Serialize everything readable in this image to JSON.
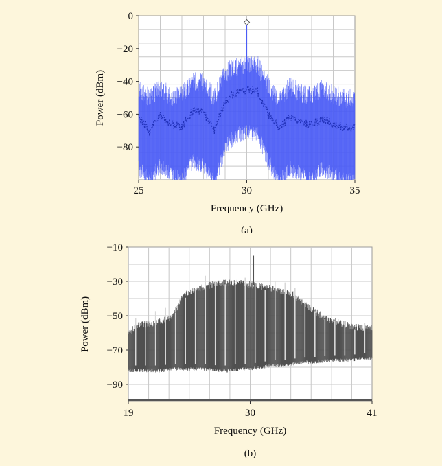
{
  "colors": {
    "background": "#fdf6dc",
    "plot_bg": "#ffffff",
    "grid": "#c8c8c8",
    "series_a": "#4a5cf5",
    "series_a_mean": "#2030b8",
    "series_b": "#505050",
    "series_b_bars": "#d8d8d8"
  },
  "chart_data": [
    {
      "type": "line",
      "caption": "(a)",
      "xlabel": "Frequency (GHz)",
      "ylabel": "Power (dBm)",
      "xlim": [
        25,
        35
      ],
      "ylim": [
        -100,
        0
      ],
      "x_ticks": [
        "25",
        "30",
        "35"
      ],
      "y_ticks": [
        "0",
        "−20",
        "−40",
        "−60",
        "−80"
      ],
      "grid": true,
      "legend": "none",
      "series": [
        {
          "x": [
            25.0,
            25.5,
            26.0,
            26.5,
            27.0,
            27.5,
            28.0,
            28.5,
            29.0,
            29.5,
            30.0,
            30.5,
            31.0,
            31.5,
            32.0,
            32.5,
            33.0,
            33.5,
            34.0,
            34.5,
            35.0
          ],
          "y_upper": [
            -44,
            -50,
            -44,
            -49,
            -48,
            -40,
            -41,
            -50,
            -35,
            -31,
            -29,
            -30,
            -43,
            -50,
            -43,
            -47,
            -49,
            -45,
            -48,
            -50,
            -50
          ],
          "y_mean": [
            -62,
            -70,
            -61,
            -66,
            -68,
            -58,
            -59,
            -70,
            -52,
            -47,
            -45,
            -46,
            -60,
            -68,
            -62,
            -65,
            -67,
            -63,
            -66,
            -68,
            -68
          ],
          "y_lower": [
            -88,
            -95,
            -86,
            -92,
            -95,
            -84,
            -86,
            -98,
            -75,
            -68,
            -66,
            -67,
            -84,
            -96,
            -88,
            -92,
            -95,
            -88,
            -92,
            -95,
            -95
          ]
        },
        {
          "x": [
            30.0
          ],
          "y": [
            -4
          ]
        }
      ]
    },
    {
      "type": "area",
      "caption": "(b)",
      "xlabel": "Frequency (GHz)",
      "ylabel": "Power (dBm)",
      "xlim": [
        19,
        41
      ],
      "ylim": [
        -100,
        -10
      ],
      "x_ticks": [
        "19",
        "30",
        "41"
      ],
      "y_ticks": [
        "−10",
        "−30",
        "−50",
        "−70",
        "−90"
      ],
      "grid": true,
      "legend": "none",
      "series": [
        {
          "x": [
            19,
            20,
            21,
            22,
            23,
            24,
            25,
            26,
            27,
            28,
            29,
            30,
            31,
            32,
            33,
            34,
            35,
            36,
            37,
            38,
            39,
            40,
            41
          ],
          "y_upper": [
            -60,
            -55,
            -55,
            -53,
            -50,
            -38,
            -35,
            -33,
            -31,
            -31,
            -31,
            -32,
            -33,
            -34,
            -36,
            -38,
            -44,
            -48,
            -52,
            -54,
            -56,
            -57,
            -57
          ],
          "y_lower": [
            -81,
            -81,
            -81,
            -81,
            -80,
            -80,
            -80,
            -80,
            -81,
            -81,
            -80,
            -80,
            -79,
            -78,
            -78,
            -77,
            -76,
            -76,
            -75,
            -75,
            -75,
            -74,
            -74
          ]
        }
      ]
    }
  ]
}
